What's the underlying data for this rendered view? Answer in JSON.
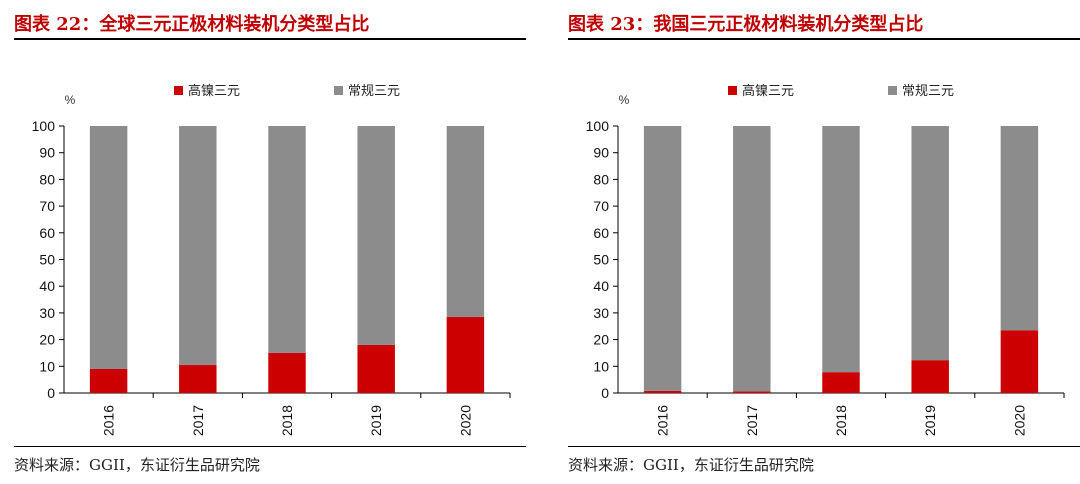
{
  "colors": {
    "high_nickel": "#cc0000",
    "conventional": "#8c8c8c",
    "title": "#c00000"
  },
  "panels": [
    {
      "title": "图表 22：全球三元正极材料装机分类型占比",
      "source": "资料来源：GGII，东证衍生品研究院",
      "chart_data": {
        "type": "bar",
        "stacked": true,
        "categories": [
          "2016",
          "2017",
          "2018",
          "2019",
          "2020"
        ],
        "series": [
          {
            "name": "高镍三元",
            "values": [
              9,
              10.5,
              15,
              18,
              28.5
            ]
          },
          {
            "name": "常规三元",
            "values": [
              91,
              89.5,
              85,
              82,
              71.5
            ]
          }
        ],
        "ylabel": "%",
        "ylim": [
          0,
          100
        ],
        "yticks": [
          0,
          10,
          20,
          30,
          40,
          50,
          60,
          70,
          80,
          90,
          100
        ],
        "legend": "top",
        "grid": false
      }
    },
    {
      "title": "图表 23：我国三元正极材料装机分类型占比",
      "source": "资料来源：GGII，东证衍生品研究院",
      "chart_data": {
        "type": "bar",
        "stacked": true,
        "categories": [
          "2016",
          "2017",
          "2018",
          "2019",
          "2020"
        ],
        "series": [
          {
            "name": "高镍三元",
            "values": [
              0.8,
              0.6,
              7.8,
              12.3,
              23.5
            ]
          },
          {
            "name": "常规三元",
            "values": [
              99.2,
              99.4,
              92.2,
              87.7,
              76.5
            ]
          }
        ],
        "ylabel": "%",
        "ylim": [
          0,
          100
        ],
        "yticks": [
          0,
          10,
          20,
          30,
          40,
          50,
          60,
          70,
          80,
          90,
          100
        ],
        "legend": "top",
        "grid": false
      }
    }
  ]
}
